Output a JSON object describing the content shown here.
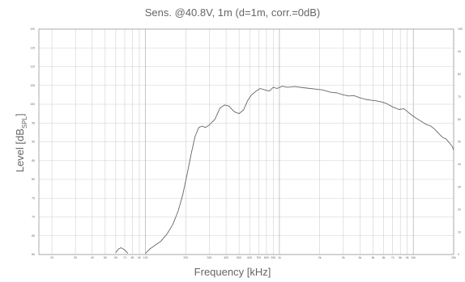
{
  "chart_data": {
    "type": "line",
    "title": "Sens. @40.8V, 1m (d=1m, corr.=0dB)",
    "ylabel_text": "Level [dB",
    "ylabel_sub": "SPL",
    "ylabel_end": "]",
    "xlabel": "Frequency [kHz]",
    "x_scale": "log",
    "xlim": [
      16,
      20000
    ],
    "ylim": [
      60,
      120
    ],
    "grid": true,
    "yticks": [
      120,
      115,
      110,
      105,
      100,
      95,
      90,
      85,
      80,
      75,
      70,
      65,
      60
    ],
    "right_yticks": [
      "100",
      "90",
      "80",
      "70",
      "60",
      "50",
      "40",
      "30",
      "20",
      "10",
      "0"
    ],
    "xticks": [
      {
        "v": 20,
        "label": "20"
      },
      {
        "v": 30,
        "label": "30"
      },
      {
        "v": 40,
        "label": "40"
      },
      {
        "v": 50,
        "label": "50"
      },
      {
        "v": 60,
        "label": "60"
      },
      {
        "v": 70,
        "label": "70"
      },
      {
        "v": 80,
        "label": "80"
      },
      {
        "v": 90,
        "label": "90"
      },
      {
        "v": 100,
        "label": "100"
      },
      {
        "v": 200,
        "label": "200"
      },
      {
        "v": 300,
        "label": "300"
      },
      {
        "v": 400,
        "label": "400"
      },
      {
        "v": 500,
        "label": "500"
      },
      {
        "v": 600,
        "label": "600"
      },
      {
        "v": 700,
        "label": "700"
      },
      {
        "v": 800,
        "label": "800"
      },
      {
        "v": 900,
        "label": "900"
      },
      {
        "v": 1000,
        "label": "1k"
      },
      {
        "v": 2000,
        "label": "2k"
      },
      {
        "v": 3000,
        "label": "3k"
      },
      {
        "v": 4000,
        "label": "4k"
      },
      {
        "v": 5000,
        "label": "5k"
      },
      {
        "v": 6000,
        "label": "6k"
      },
      {
        "v": 7000,
        "label": "7k"
      },
      {
        "v": 8000,
        "label": "8k"
      },
      {
        "v": 9000,
        "label": "9k"
      },
      {
        "v": 10000,
        "label": "10k"
      },
      {
        "v": 20000,
        "label": "20k"
      }
    ],
    "series": [
      {
        "color": "#666666",
        "segments": [
          [
            [
              60,
              60.5
            ],
            [
              63,
              61.5
            ],
            [
              66,
              61.8
            ],
            [
              70,
              61.2
            ],
            [
              74,
              60.3
            ]
          ],
          [
            [
              100,
              60.3
            ],
            [
              108,
              61.5
            ],
            [
              118,
              62.5
            ],
            [
              130,
              63.5
            ],
            [
              145,
              65.5
            ],
            [
              160,
              68
            ],
            [
              175,
              71.5
            ],
            [
              190,
              76
            ],
            [
              205,
              81.5
            ],
            [
              220,
              87
            ],
            [
              235,
              91.5
            ],
            [
              250,
              93.8
            ],
            [
              265,
              94.2
            ],
            [
              280,
              93.8
            ],
            [
              300,
              94.5
            ],
            [
              330,
              96
            ],
            [
              360,
              99
            ],
            [
              390,
              99.8
            ],
            [
              420,
              99.5
            ],
            [
              460,
              98
            ],
            [
              500,
              97.5
            ],
            [
              540,
              98.5
            ],
            [
              580,
              101
            ],
            [
              620,
              102.5
            ],
            [
              670,
              103.5
            ],
            [
              720,
              104.2
            ],
            [
              780,
              103.8
            ],
            [
              840,
              103.5
            ],
            [
              900,
              104.5
            ],
            [
              960,
              104.2
            ],
            [
              1050,
              104.8
            ],
            [
              1150,
              104.5
            ],
            [
              1300,
              104.7
            ],
            [
              1500,
              104.4
            ],
            [
              1700,
              104.2
            ],
            [
              1900,
              104
            ],
            [
              2100,
              103.8
            ],
            [
              2400,
              103.2
            ],
            [
              2700,
              103
            ],
            [
              3000,
              102.5
            ],
            [
              3300,
              102.2
            ],
            [
              3600,
              102.3
            ],
            [
              4000,
              101.7
            ],
            [
              4400,
              101.3
            ],
            [
              4800,
              101.1
            ],
            [
              5300,
              100.9
            ],
            [
              5800,
              100.6
            ],
            [
              6300,
              100.2
            ],
            [
              7000,
              99.3
            ],
            [
              7800,
              98.6
            ],
            [
              8500,
              98.8
            ],
            [
              9000,
              98.1
            ],
            [
              9500,
              97.4
            ],
            [
              10500,
              96.3
            ],
            [
              11500,
              95.4
            ],
            [
              12500,
              94.6
            ],
            [
              13500,
              94.2
            ],
            [
              14500,
              93.3
            ],
            [
              15500,
              92.2
            ],
            [
              16500,
              91.2
            ],
            [
              17500,
              90.8
            ],
            [
              18500,
              89.8
            ],
            [
              19500,
              88.8
            ],
            [
              20000,
              87.8
            ]
          ]
        ]
      }
    ]
  }
}
